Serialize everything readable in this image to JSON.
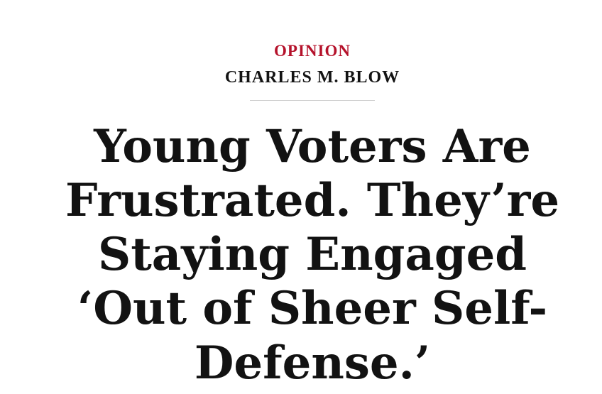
{
  "page": {
    "background_color": "#ffffff"
  },
  "colors": {
    "kicker_red": "#b5122b",
    "text_black": "#121212",
    "divider_gray": "#cfcfcf"
  },
  "kicker": {
    "label": "OPINION"
  },
  "byline": {
    "name": "CHARLES M. BLOW"
  },
  "headline": {
    "text": "Young Voters Are\nFrustrated. They’re\nStaying Engaged\n‘Out of Sheer Self-\nDefense.’",
    "full_text": "Young Voters Are Frustrated. They’re Staying Engaged ‘Out of Sheer Self-Defense.’"
  }
}
